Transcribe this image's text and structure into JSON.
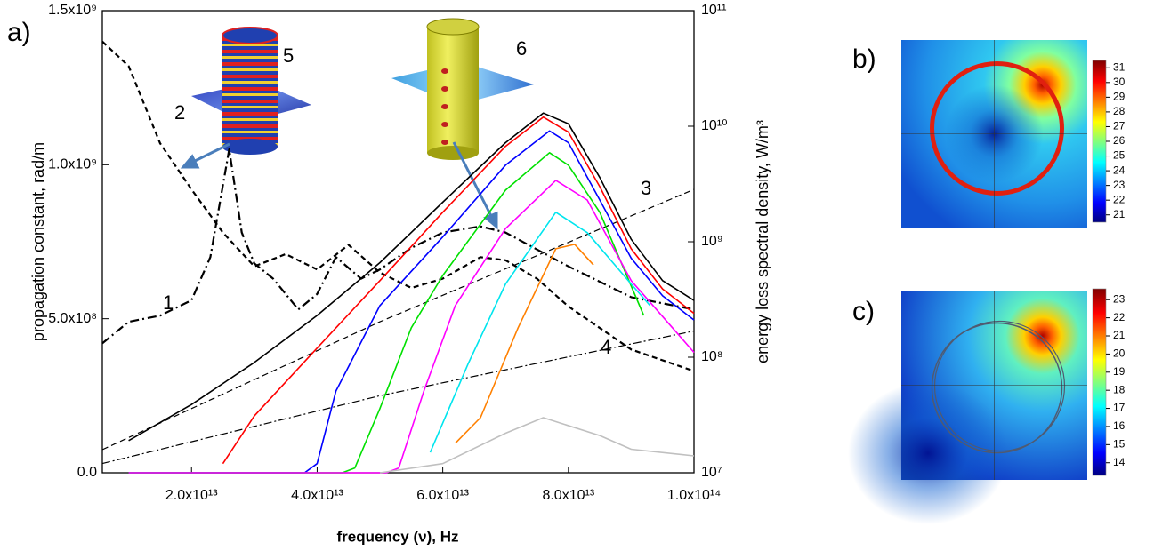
{
  "chart_data": [
    {
      "type": "line",
      "panel": "a)",
      "x_label": "frequency (ν), Hz",
      "y_label": "propagation constant, rad/m",
      "y2_label": "energy loss spectral density, W/m³",
      "xlim": [
        5800000000000.0,
        100000000000000.0
      ],
      "xticks": [
        {
          "value": 20000000000000.0,
          "label": "2.0x10¹³"
        },
        {
          "value": 40000000000000.0,
          "label": "4.0x10¹³"
        },
        {
          "value": 60000000000000.0,
          "label": "6.0x10¹³"
        },
        {
          "value": 80000000000000.0,
          "label": "8.0x10¹³"
        },
        {
          "value": 100000000000000.0,
          "label": "1.0x10¹⁴"
        }
      ],
      "ylim": [
        0,
        1500000000.0
      ],
      "yticks": [
        {
          "value": 0,
          "label": "0.0"
        },
        {
          "value": 500000000.0,
          "label": "5.0x10⁸"
        },
        {
          "value": 1000000000.0,
          "label": "1.0x10⁹"
        },
        {
          "value": 1500000000.0,
          "label": "1.5x10⁹"
        }
      ],
      "y2lim": [
        10000000.0,
        100000000000.0
      ],
      "y2log": true,
      "y2ticks": [
        {
          "value": 10000000.0,
          "label": "10⁷"
        },
        {
          "value": 100000000.0,
          "label": "10⁸"
        },
        {
          "value": 1000000000.0,
          "label": "10⁹"
        },
        {
          "value": 10000000000.0,
          "label": "10¹⁰"
        },
        {
          "value": 100000000000.0,
          "label": "10¹¹"
        }
      ],
      "annotations": [
        "1",
        "2",
        "3",
        "4",
        "5",
        "6"
      ],
      "series": [
        {
          "color": "#000000",
          "dash": "dashed",
          "axis": "y",
          "x": [
            5800000000000.0,
            10000000000000.0,
            15000000000000.0,
            20000000000000.0,
            25000000000000.0,
            30000000000000.0,
            35000000000000.0,
            40000000000000.0,
            45000000000000.0,
            50000000000000.0,
            55000000000000.0,
            60000000000000.0,
            66000000000000.0,
            70000000000000.0,
            75000000000000.0,
            80000000000000.0,
            90000000000000.0,
            100000000000000.0
          ],
          "values": [
            1400000000.0,
            1320000000.0,
            1070000000.0,
            920000000.0,
            780000000.0,
            670000000.0,
            710000000.0,
            660000000.0,
            740000000.0,
            650000000.0,
            600000000.0,
            630000000.0,
            700000000.0,
            690000000.0,
            630000000.0,
            540000000.0,
            400000000.0,
            330000000.0
          ]
        },
        {
          "color": "#000000",
          "dash": "dashdot",
          "axis": "y",
          "x": [
            5800000000000.0,
            10000000000000.0,
            15000000000000.0,
            20000000000000.0,
            23000000000000.0,
            26000000000000.0,
            28000000000000.0,
            30000000000000.0,
            33000000000000.0,
            37000000000000.0,
            40000000000000.0,
            43000000000000.0,
            47000000000000.0,
            50000000000000.0,
            55000000000000.0,
            60000000000000.0,
            66000000000000.0,
            70000000000000.0,
            80000000000000.0,
            90000000000000.0,
            100000000000000.0
          ],
          "values": [
            420000000.0,
            490000000.0,
            510000000.0,
            560000000.0,
            700000000.0,
            1050000000.0,
            780000000.0,
            680000000.0,
            630000000.0,
            530000000.0,
            580000000.0,
            700000000.0,
            630000000.0,
            660000000.0,
            730000000.0,
            780000000.0,
            800000000.0,
            780000000.0,
            670000000.0,
            570000000.0,
            530000000.0
          ]
        },
        {
          "color": "#000000",
          "dash": "thindash",
          "axis": "y",
          "x": [
            5800000000000.0,
            50000000000000.0,
            100000000000000.0
          ],
          "values": [
            75000000.0,
            490000000.0,
            920000000.0
          ]
        },
        {
          "color": "#000000",
          "dash": "thindashdot",
          "axis": "y",
          "x": [
            5800000000000.0,
            50000000000000.0,
            100000000000000.0
          ],
          "values": [
            30000000.0,
            250000000.0,
            460000000.0
          ]
        },
        {
          "color": "#000000",
          "axis": "y2",
          "x": [
            10000000000000.0,
            20000000000000.0,
            30000000000000.0,
            40000000000000.0,
            50000000000000.0,
            60000000000000.0,
            70000000000000.0,
            76000000000000.0,
            80000000000000.0,
            85000000000000.0,
            90000000000000.0,
            95000000000000.0,
            100000000000000.0
          ],
          "values": [
            19000000.0,
            39000000.0,
            90000000.0,
            230000000.0,
            660000000.0,
            2200000000.0,
            7200000000.0,
            13000000000.0,
            10500000000.0,
            3600000000.0,
            1050000000.0,
            460000000.0,
            310000000.0
          ]
        },
        {
          "color": "#ff0000",
          "axis": "y2",
          "x": [
            25000000000000.0,
            30000000000000.0,
            40000000000000.0,
            50000000000000.0,
            60000000000000.0,
            70000000000000.0,
            76000000000000.0,
            80000000000000.0,
            85000000000000.0,
            90000000000000.0,
            95000000000000.0,
            100000000000000.0
          ],
          "values": [
            12000000.0,
            31000000.0,
            120000000.0,
            460000000.0,
            1800000000.0,
            6700000000.0,
            12000000000.0,
            8900000000.0,
            3000000000.0,
            870000000.0,
            390000000.0,
            240000000.0
          ]
        },
        {
          "color": "#0000ff",
          "axis": "y2",
          "x": [
            10000000000000.0,
            38000000000000.0,
            40000000000000.0,
            43000000000000.0,
            50000000000000.0,
            60000000000000.0,
            70000000000000.0,
            77000000000000.0,
            80000000000000.0,
            85000000000000.0,
            90000000000000.0,
            95000000000000.0,
            100000000000000.0
          ],
          "values": [
            10000000.0,
            10000000.0,
            12000000.0,
            51000000.0,
            280000000.0,
            1100000000.0,
            4600000000.0,
            9100000000.0,
            7200000000.0,
            2300000000.0,
            720000000.0,
            340000000.0,
            210000000.0
          ]
        },
        {
          "color": "#00e000",
          "axis": "y2",
          "x": [
            10000000000000.0,
            44000000000000.0,
            46000000000000.0,
            50000000000000.0,
            55000000000000.0,
            60000000000000.0,
            70000000000000.0,
            77000000000000.0,
            80000000000000.0,
            85000000000000.0,
            92000000000000.0
          ],
          "values": [
            10000000.0,
            10000000.0,
            11000000.0,
            36000000.0,
            180000000.0,
            510000000.0,
            2800000000.0,
            5900000000.0,
            4600000000.0,
            1800000000.0,
            230000000.0
          ]
        },
        {
          "color": "#ff00ff",
          "axis": "y2",
          "x": [
            10000000000000.0,
            51000000000000.0,
            53000000000000.0,
            57000000000000.0,
            62000000000000.0,
            70000000000000.0,
            78000000000000.0,
            83000000000000.0,
            90000000000000.0,
            100000000000000.0
          ],
          "values": [
            10000000.0,
            10000000.0,
            11000000.0,
            51000000.0,
            280000000.0,
            1300000000.0,
            3400000000.0,
            2300000000.0,
            460000000.0,
            110000000.0
          ]
        },
        {
          "color": "#00e5ee",
          "axis": "y2",
          "x": [
            58000000000000.0,
            64000000000000.0,
            70000000000000.0,
            78000000000000.0,
            83000000000000.0,
            90000000000000.0,
            93000000000000.0
          ],
          "values": [
            15000000.0,
            87000000.0,
            430000000.0,
            1800000000.0,
            1200000000.0,
            430000000.0,
            280000000.0
          ]
        },
        {
          "color": "#ff8000",
          "axis": "y2",
          "x": [
            62000000000000.0,
            66000000000000.0,
            72000000000000.0,
            78000000000000.0,
            81000000000000.0,
            84000000000000.0
          ],
          "values": [
            18000000.0,
            30000000.0,
            180000000.0,
            870000000.0,
            950000000.0,
            630000000.0
          ]
        },
        {
          "color": "#c0c0c0",
          "axis": "y2",
          "x": [
            50000000000000.0,
            60000000000000.0,
            70000000000000.0,
            76000000000000.0,
            85000000000000.0,
            90000000000000.0,
            100000000000000.0
          ],
          "values": [
            10000000.0,
            12000000.0,
            22000000.0,
            30000000.0,
            21000000.0,
            16000000.0,
            14000000.0
          ]
        }
      ]
    },
    {
      "type": "heatmap",
      "panel": "b)",
      "clim": [
        20.5,
        31.5
      ],
      "cticks": [
        21,
        22,
        23,
        24,
        25,
        26,
        27,
        28,
        29,
        30,
        31
      ]
    },
    {
      "type": "heatmap",
      "panel": "c)",
      "clim": [
        13.3,
        23.6
      ],
      "cticks": [
        14,
        15,
        16,
        17,
        18,
        19,
        20,
        21,
        22,
        23
      ]
    }
  ]
}
